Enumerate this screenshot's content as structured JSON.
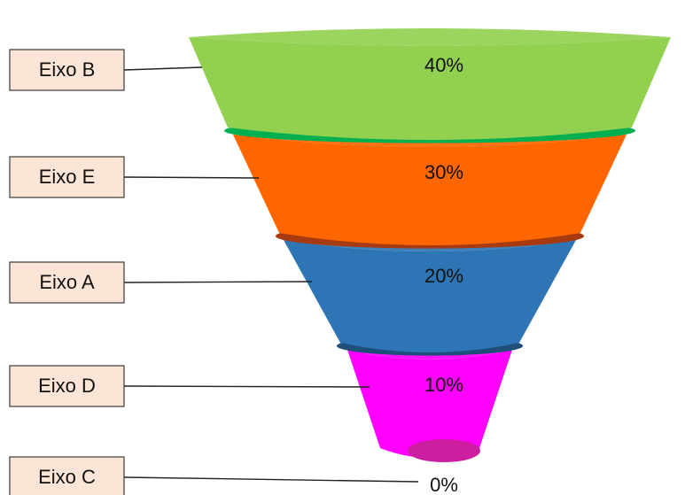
{
  "chart_data": {
    "type": "funnel",
    "title": "",
    "categories": [
      "Eixo B",
      "Eixo E",
      "Eixo A",
      "Eixo D",
      "Eixo C"
    ],
    "values": [
      40,
      30,
      20,
      10,
      0
    ],
    "value_labels": [
      "40%",
      "30%",
      "20%",
      "10%",
      "0%"
    ],
    "colors": {
      "Eixo B": "#92d050",
      "Eixo E": "#ff6600",
      "Eixo A": "#2e75b6",
      "Eixo D": "#ff00ff",
      "Eixo C": "#cc1fa0"
    },
    "rim_colors": {
      "Eixo B": "#00b050",
      "Eixo E": "#a83a12",
      "Eixo A": "#1f4e79",
      "Eixo D": "#c000a0"
    },
    "legend_placement": "left",
    "grid": false
  }
}
